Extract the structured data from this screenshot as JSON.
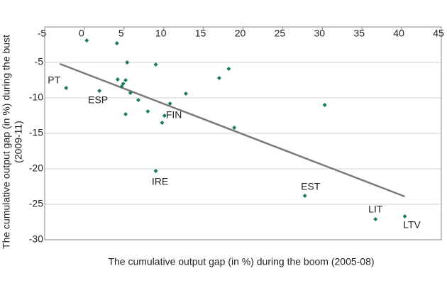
{
  "chart_data": {
    "type": "scatter",
    "xlabel": "The cumulative output gap (in %) during the boom (2005-08)",
    "ylabel": [
      "The cumulative output gap (in %) during the bust",
      "(2009-11)"
    ],
    "x": [
      0.3,
      4.1,
      -2.3,
      5.4,
      9.0,
      1.9,
      4.2,
      5.2,
      4.9,
      4.7,
      5.8,
      6.8,
      5.2,
      8.0,
      10.1,
      9.8,
      10.8,
      12.8,
      17.0,
      18.2,
      18.9,
      30.3,
      9.0,
      27.8,
      36.7,
      40.4
    ],
    "y": [
      -1.9,
      -2.3,
      -8.6,
      -5.0,
      -5.3,
      -9.0,
      -7.4,
      -7.5,
      -8.0,
      -8.4,
      -9.3,
      -10.3,
      -12.3,
      -11.9,
      -12.5,
      -13.5,
      -10.8,
      -9.4,
      -7.2,
      -5.9,
      -14.2,
      -11.0,
      -20.3,
      -23.8,
      -27.1,
      -26.7
    ],
    "labels": [
      null,
      null,
      "PT",
      null,
      null,
      "ESP",
      null,
      null,
      null,
      null,
      null,
      null,
      null,
      null,
      "FIN",
      null,
      null,
      null,
      null,
      null,
      null,
      null,
      "IRE",
      "EST",
      "LIT",
      "LTV"
    ],
    "color": "#1d7a5f",
    "trendline": {
      "x": [
        -3.1,
        40.4
      ],
      "y": [
        -5.2,
        -23.9
      ],
      "color": "#7a7a7a"
    },
    "xlim": [
      -5,
      45
    ],
    "ylim": [
      -30,
      0
    ],
    "xticks": [
      -5,
      0,
      5,
      10,
      15,
      20,
      25,
      30,
      35,
      40,
      45
    ],
    "yticks": [
      -5,
      -10,
      -15,
      -20,
      -25,
      -30
    ],
    "grid": true
  }
}
